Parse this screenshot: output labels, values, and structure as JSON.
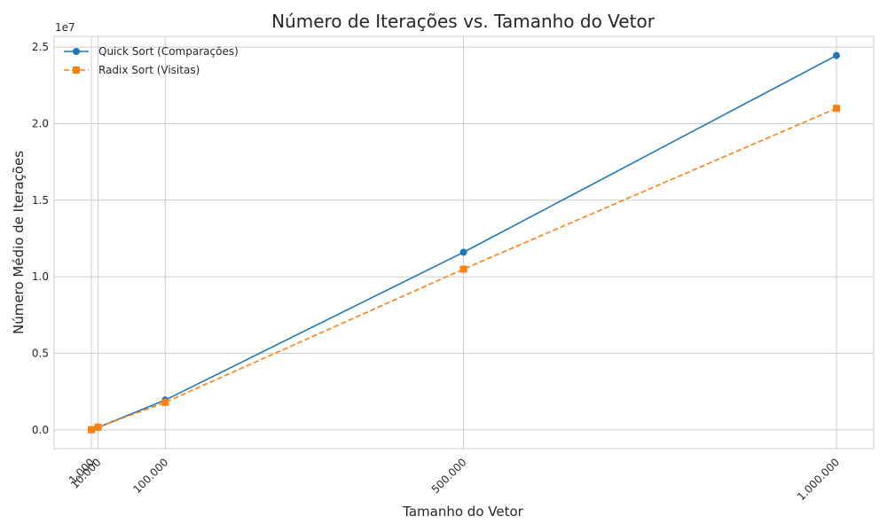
{
  "chart_data": {
    "type": "line",
    "title": "Número de Iterações vs. Tamanho do Vetor",
    "xlabel": "Tamanho do Vetor",
    "ylabel": "Número Médio de Iterações",
    "y_multiplier_label": "1e7",
    "x": [
      1000,
      10000,
      100000,
      500000,
      1000000
    ],
    "x_tick_labels": [
      "1.000",
      "10.000",
      "100.000",
      "500.000",
      "1.000.000"
    ],
    "y_ticks": [
      0,
      0.5,
      1.0,
      1.5,
      2.0,
      2.5
    ],
    "y_tick_labels": [
      "0.0",
      "0.5",
      "1.0",
      "1.5",
      "2.0",
      "2.5"
    ],
    "xlim": [
      -48950,
      1049950
    ],
    "ylim": [
      -1225000,
      25700000
    ],
    "grid": true,
    "legend_position": "top-left",
    "series": [
      {
        "name": "Quick Sort (Comparações)",
        "values": [
          11000,
          160000,
          1950000,
          11600000,
          24450000
        ],
        "color": "#1f77b4",
        "line_style": "solid",
        "marker": "circle"
      },
      {
        "name": "Radix Sort (Visitas)",
        "values": [
          9000,
          180000,
          1800000,
          10500000,
          21000000
        ],
        "color": "#ff7f0e",
        "line_style": "dashed",
        "marker": "square"
      }
    ]
  }
}
